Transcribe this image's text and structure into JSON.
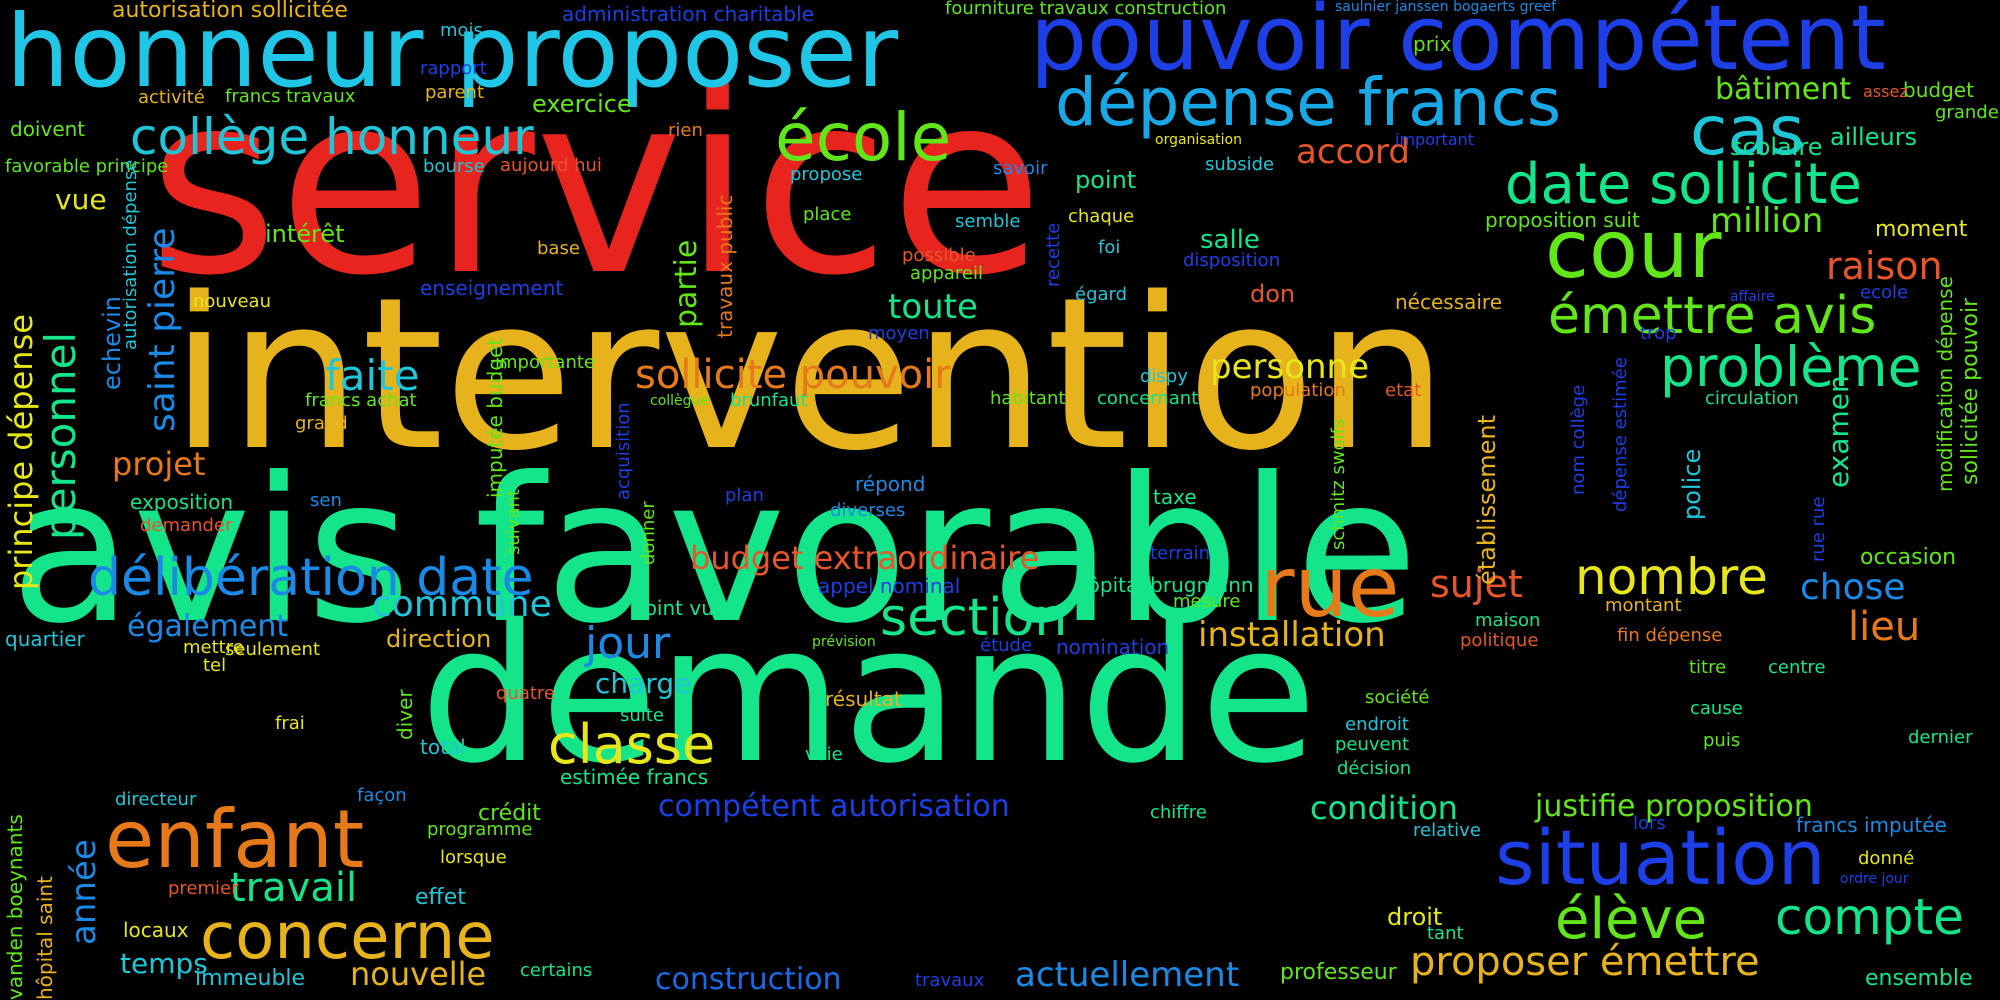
{
  "background": "#000000",
  "words": [
    {
      "id": "service",
      "text": "service",
      "color": "#e8241f"
    },
    {
      "id": "intervention",
      "text": "intervention",
      "color": "#e6b31d"
    },
    {
      "id": "avis-favorable",
      "text": "avis favorable",
      "color": "#14e48a"
    },
    {
      "id": "demande",
      "text": "demande",
      "color": "#14e48a"
    },
    {
      "id": "honneur-proposer",
      "text": "honneur proposer",
      "color": "#20c6e6"
    },
    {
      "id": "pouvoir-competent",
      "text": "pouvoir compétent",
      "color": "#1e3ee6"
    },
    {
      "id": "depense-francs",
      "text": "dépense francs",
      "color": "#1aa7e6"
    },
    {
      "id": "ecole",
      "text": "école",
      "color": "#62e61a"
    },
    {
      "id": "college-honneur",
      "text": "collège honneur",
      "color": "#20c6d8"
    },
    {
      "id": "cas",
      "text": "cas",
      "color": "#20c6d8"
    },
    {
      "id": "cour",
      "text": "cour",
      "color": "#62e61a"
    },
    {
      "id": "date-sollicite",
      "text": "date sollicite",
      "color": "#14e48a"
    },
    {
      "id": "emettre-avis",
      "text": "émettre avis",
      "color": "#62e61a"
    },
    {
      "id": "probleme",
      "text": "problème",
      "color": "#14e48a"
    },
    {
      "id": "raison",
      "text": "raison",
      "color": "#e8552a"
    },
    {
      "id": "million",
      "text": "million",
      "color": "#62e61a"
    },
    {
      "id": "rue",
      "text": "rue",
      "color": "#e67a1a"
    },
    {
      "id": "enfant",
      "text": "enfant",
      "color": "#e67a1a"
    },
    {
      "id": "situation",
      "text": "situation",
      "color": "#1e3ee6"
    },
    {
      "id": "eleve",
      "text": "élève",
      "color": "#62e61a"
    },
    {
      "id": "compte",
      "text": "compte",
      "color": "#14e48a"
    },
    {
      "id": "concerne",
      "text": "concerne",
      "color": "#e6b31d"
    },
    {
      "id": "travail",
      "text": "travail",
      "color": "#14e48a"
    },
    {
      "id": "classe",
      "text": "classe",
      "color": "#e6e61a"
    },
    {
      "id": "section",
      "text": "section",
      "color": "#14e48a"
    },
    {
      "id": "nombre",
      "text": "nombre",
      "color": "#e6e61a"
    },
    {
      "id": "deliberation-date",
      "text": "délibération date",
      "color": "#1a8ae6"
    },
    {
      "id": "budget-extraordinaire",
      "text": "budget extraordinaire",
      "color": "#e8552a"
    },
    {
      "id": "sollicite-pouvoir",
      "text": "sollicite pouvoir",
      "color": "#e67a1a"
    },
    {
      "id": "faite",
      "text": "faite",
      "color": "#20c6d8"
    },
    {
      "id": "toute",
      "text": "toute",
      "color": "#14e48a"
    },
    {
      "id": "personne",
      "text": "personne",
      "color": "#e6e61a"
    },
    {
      "id": "accord",
      "text": "accord",
      "color": "#e8552a"
    },
    {
      "id": "batiment",
      "text": "bâtiment",
      "color": "#62e61a"
    },
    {
      "id": "scolaire",
      "text": "scolaire",
      "color": "#14e48a"
    },
    {
      "id": "proposer-emettre",
      "text": "proposer émettre",
      "color": "#e6b31d"
    },
    {
      "id": "actuellement",
      "text": "actuellement",
      "color": "#1a8ae6"
    },
    {
      "id": "construction",
      "text": "construction",
      "color": "#1a6ae6"
    },
    {
      "id": "nouvelle",
      "text": "nouvelle",
      "color": "#e6b31d"
    },
    {
      "id": "temps",
      "text": "temps",
      "color": "#20c6d8"
    },
    {
      "id": "commune",
      "text": "commune",
      "color": "#20c6d8"
    },
    {
      "id": "jour",
      "text": "jour",
      "color": "#1a8ae6"
    },
    {
      "id": "installation",
      "text": "installation",
      "color": "#e6b31d"
    },
    {
      "id": "sujet",
      "text": "sujet",
      "color": "#e8552a"
    },
    {
      "id": "chose",
      "text": "chose",
      "color": "#1a8ae6"
    },
    {
      "id": "lieu",
      "text": "lieu",
      "color": "#e67a1a"
    },
    {
      "id": "condition",
      "text": "condition",
      "color": "#14e48a"
    },
    {
      "id": "justifie-proposition",
      "text": "justifie proposition",
      "color": "#62e61a"
    },
    {
      "id": "competent-autorisation",
      "text": "compétent autorisation",
      "color": "#1e3ee6"
    },
    {
      "id": "projet",
      "text": "projet",
      "color": "#e67a1a"
    },
    {
      "id": "egalement",
      "text": "également",
      "color": "#1a8ae6"
    },
    {
      "id": "charge",
      "text": "charge",
      "color": "#20c6d8"
    },
    {
      "id": "direction",
      "text": "direction",
      "color": "#e6b31d"
    },
    {
      "id": "vue",
      "text": "vue",
      "color": "#e6e61a"
    },
    {
      "id": "interet",
      "text": "intérêt",
      "color": "#62e61a"
    },
    {
      "id": "point",
      "text": "point",
      "color": "#14e48a"
    },
    {
      "id": "salle",
      "text": "salle",
      "color": "#14e48a"
    },
    {
      "id": "moment",
      "text": "moment",
      "color": "#e6e61a"
    },
    {
      "id": "occasion",
      "text": "occasion",
      "color": "#62e61a"
    },
    {
      "id": "exercice",
      "text": "exercice",
      "color": "#62e61a"
    },
    {
      "id": "prix",
      "text": "prix",
      "color": "#62e61a"
    },
    {
      "id": "budget",
      "text": "budget",
      "color": "#62e61a"
    },
    {
      "id": "grande",
      "text": "grande",
      "color": "#62e61a"
    },
    {
      "id": "ailleurs",
      "text": "ailleurs",
      "color": "#14e48a"
    },
    {
      "id": "autorisation-sollicitee",
      "text": "autorisation sollicitée",
      "color": "#e6b31d"
    },
    {
      "id": "administration-charitable",
      "text": "administration charitable",
      "color": "#1e3ee6"
    },
    {
      "id": "fourniture-travaux-construction",
      "text": "fourniture travaux construction",
      "color": "#62e61a"
    },
    {
      "id": "saulnier-janssen",
      "text": "saulnier janssen bogaerts greef",
      "color": "#1a8ae6"
    },
    {
      "id": "activite",
      "text": "activité",
      "color": "#e6b31d"
    },
    {
      "id": "francs-travaux",
      "text": "francs travaux",
      "color": "#62e61a"
    },
    {
      "id": "parent",
      "text": "parent",
      "color": "#e6b31d"
    },
    {
      "id": "doivent",
      "text": "doivent",
      "color": "#62e61a"
    },
    {
      "id": "favorable-principe",
      "text": "favorable principe",
      "color": "#62e61a"
    },
    {
      "id": "mois",
      "text": "mois",
      "color": "#20c6d8"
    },
    {
      "id": "rapport",
      "text": "rapport",
      "color": "#1e3ee6"
    },
    {
      "id": "bourse",
      "text": "bourse",
      "color": "#20c6d8"
    },
    {
      "id": "rien",
      "text": "rien",
      "color": "#e67a1a"
    },
    {
      "id": "aujourd-hui",
      "text": "aujourd hui",
      "color": "#e8552a"
    },
    {
      "id": "propose",
      "text": "propose",
      "color": "#20c6d8"
    },
    {
      "id": "savoir",
      "text": "savoir",
      "color": "#1a8ae6"
    },
    {
      "id": "organisation",
      "text": "organisation",
      "color": "#e6e61a"
    },
    {
      "id": "subside",
      "text": "subside",
      "color": "#20c6d8"
    },
    {
      "id": "important",
      "text": "important",
      "color": "#1e3ee6"
    },
    {
      "id": "assez",
      "text": "assez",
      "color": "#e8552a"
    },
    {
      "id": "proposition-suit",
      "text": "proposition suit",
      "color": "#62e61a"
    },
    {
      "id": "place",
      "text": "place",
      "color": "#62e61a"
    },
    {
      "id": "semble",
      "text": "semble",
      "color": "#20c6d8"
    },
    {
      "id": "chaque",
      "text": "chaque",
      "color": "#e6e61a"
    },
    {
      "id": "foi",
      "text": "foi",
      "color": "#20c6d8"
    },
    {
      "id": "possible",
      "text": "possible",
      "color": "#e8552a"
    },
    {
      "id": "disposition",
      "text": "disposition",
      "color": "#1e3ee6"
    },
    {
      "id": "appareil",
      "text": "appareil",
      "color": "#62e61a"
    },
    {
      "id": "egard",
      "text": "égard",
      "color": "#20c6d8"
    },
    {
      "id": "don",
      "text": "don",
      "color": "#e8552a"
    },
    {
      "id": "necessaire",
      "text": "nécessaire",
      "color": "#e6b31d"
    },
    {
      "id": "affaire",
      "text": "affaire",
      "color": "#1e3ee6"
    },
    {
      "id": "ecole-small",
      "text": "ecole",
      "color": "#1e3ee6"
    },
    {
      "id": "enseignement",
      "text": "enseignement",
      "color": "#1e3ee6"
    },
    {
      "id": "base",
      "text": "base",
      "color": "#e6b31d"
    },
    {
      "id": "nouveau",
      "text": "nouveau",
      "color": "#e6e61a"
    },
    {
      "id": "moyen",
      "text": "moyen",
      "color": "#1e3ee6"
    },
    {
      "id": "trop",
      "text": "trop",
      "color": "#1e3ee6"
    },
    {
      "id": "importante",
      "text": "importante",
      "color": "#62e61a"
    },
    {
      "id": "grand",
      "text": "grand",
      "color": "#e6b31d"
    },
    {
      "id": "francs-achat",
      "text": "francs achat",
      "color": "#62e61a"
    },
    {
      "id": "collegue",
      "text": "collègue",
      "color": "#62e61a"
    },
    {
      "id": "brunfaut",
      "text": "brunfaut",
      "color": "#14e48a"
    },
    {
      "id": "habitant",
      "text": "habitant",
      "color": "#62e61a"
    },
    {
      "id": "concernant",
      "text": "concernant",
      "color": "#14e48a"
    },
    {
      "id": "dispy",
      "text": "dispy",
      "color": "#20c6d8"
    },
    {
      "id": "population",
      "text": "population",
      "color": "#e67a1a"
    },
    {
      "id": "etat",
      "text": "etat",
      "color": "#e8552a"
    },
    {
      "id": "circulation",
      "text": "circulation",
      "color": "#14e48a"
    },
    {
      "id": "exposition",
      "text": "exposition",
      "color": "#14e48a"
    },
    {
      "id": "demander",
      "text": "demander",
      "color": "#e8552a"
    },
    {
      "id": "sen",
      "text": "sen",
      "color": "#1a8ae6"
    },
    {
      "id": "plan",
      "text": "plan",
      "color": "#1e3ee6"
    },
    {
      "id": "repond",
      "text": "répond",
      "color": "#1a8ae6"
    },
    {
      "id": "diverses",
      "text": "diverses",
      "color": "#1a8ae6"
    },
    {
      "id": "taxe",
      "text": "taxe",
      "color": "#14e48a"
    },
    {
      "id": "terrain",
      "text": "terrain",
      "color": "#1e3ee6"
    },
    {
      "id": "appel-nominal",
      "text": "appel nominal",
      "color": "#1e3ee6"
    },
    {
      "id": "hopital-brugmann",
      "text": "hôpital brugmann",
      "color": "#14e48a"
    },
    {
      "id": "mesure",
      "text": "mesure",
      "color": "#62e61a"
    },
    {
      "id": "maison",
      "text": "maison",
      "color": "#14e48a"
    },
    {
      "id": "montant",
      "text": "montant",
      "color": "#e6b31d"
    },
    {
      "id": "fin-depense",
      "text": "fin dépense",
      "color": "#e67a1a"
    },
    {
      "id": "politique",
      "text": "politique",
      "color": "#e8552a"
    },
    {
      "id": "quartier",
      "text": "quartier",
      "color": "#20c6d8"
    },
    {
      "id": "mettre",
      "text": "mettre",
      "color": "#e6e61a"
    },
    {
      "id": "seulement",
      "text": "seulement",
      "color": "#e6e61a"
    },
    {
      "id": "tel",
      "text": "tel",
      "color": "#e6e61a"
    },
    {
      "id": "point-vue",
      "text": "point vue",
      "color": "#14e48a"
    },
    {
      "id": "prevision",
      "text": "prévision",
      "color": "#62e61a"
    },
    {
      "id": "etude",
      "text": "étude",
      "color": "#1e3ee6"
    },
    {
      "id": "nomination",
      "text": "nomination",
      "color": "#1e3ee6"
    },
    {
      "id": "titre",
      "text": "titre",
      "color": "#62e61a"
    },
    {
      "id": "centre",
      "text": "centre",
      "color": "#14e48a"
    },
    {
      "id": "quatre",
      "text": "quatre",
      "color": "#e8552a"
    },
    {
      "id": "resultat",
      "text": "résultat",
      "color": "#e6b31d"
    },
    {
      "id": "suite",
      "text": "suite",
      "color": "#14e48a"
    },
    {
      "id": "frai",
      "text": "frai",
      "color": "#e6e61a"
    },
    {
      "id": "total",
      "text": "total",
      "color": "#20c6d8"
    },
    {
      "id": "estimee-francs",
      "text": "estimée francs",
      "color": "#14e48a"
    },
    {
      "id": "voie",
      "text": "voie",
      "color": "#14e48a"
    },
    {
      "id": "societe",
      "text": "société",
      "color": "#62e61a"
    },
    {
      "id": "endroit",
      "text": "endroit",
      "color": "#20c6d8"
    },
    {
      "id": "peuvent",
      "text": "peuvent",
      "color": "#14e48a"
    },
    {
      "id": "decision",
      "text": "décision",
      "color": "#14e48a"
    },
    {
      "id": "cause",
      "text": "cause",
      "color": "#14e48a"
    },
    {
      "id": "puis",
      "text": "puis",
      "color": "#62e61a"
    },
    {
      "id": "dernier",
      "text": "dernier",
      "color": "#14e48a"
    },
    {
      "id": "directeur",
      "text": "directeur",
      "color": "#20c6d8"
    },
    {
      "id": "facon",
      "text": "façon",
      "color": "#1a8ae6"
    },
    {
      "id": "credit",
      "text": "crédit",
      "color": "#62e61a"
    },
    {
      "id": "chiffre",
      "text": "chiffre",
      "color": "#14e48a"
    },
    {
      "id": "programme",
      "text": "programme",
      "color": "#62e61a"
    },
    {
      "id": "lorsque",
      "text": "lorsque",
      "color": "#e6e61a"
    },
    {
      "id": "premier",
      "text": "premier",
      "color": "#e8552a"
    },
    {
      "id": "effet",
      "text": "effet",
      "color": "#20c6d8"
    },
    {
      "id": "locaux",
      "text": "locaux",
      "color": "#e6e61a"
    },
    {
      "id": "relative",
      "text": "relative",
      "color": "#20c6d8"
    },
    {
      "id": "lors",
      "text": "lors",
      "color": "#1e3ee6"
    },
    {
      "id": "francs-imputee",
      "text": "francs imputée",
      "color": "#1a8ae6"
    },
    {
      "id": "donne",
      "text": "donné",
      "color": "#e6e61a"
    },
    {
      "id": "ordre-jour",
      "text": "ordre jour",
      "color": "#1e3ee6"
    },
    {
      "id": "droit",
      "text": "droit",
      "color": "#e6e61a"
    },
    {
      "id": "tant",
      "text": "tant",
      "color": "#14e48a"
    },
    {
      "id": "immeuble",
      "text": "immeuble",
      "color": "#20c6d8"
    },
    {
      "id": "certains",
      "text": "certains",
      "color": "#14e48a"
    },
    {
      "id": "travaux",
      "text": "travaux",
      "color": "#1e3ee6"
    },
    {
      "id": "professeur",
      "text": "professeur",
      "color": "#62e61a"
    },
    {
      "id": "ensemble",
      "text": "ensemble",
      "color": "#14e48a"
    },
    {
      "id": "personnel",
      "text": "personnel",
      "color": "#14e48a"
    },
    {
      "id": "saint-pierre",
      "text": "saint pierre",
      "color": "#1a8ae6"
    },
    {
      "id": "principe-depense",
      "text": "principe dépense",
      "color": "#e6e61a"
    },
    {
      "id": "echevin",
      "text": "echevin",
      "color": "#1a8ae6"
    },
    {
      "id": "autorisation-depense",
      "text": "autorisation dépense",
      "color": "#20c6d8"
    },
    {
      "id": "partie",
      "text": "partie",
      "color": "#62e61a"
    },
    {
      "id": "travaux-public",
      "text": "travaux public",
      "color": "#e67a1a"
    },
    {
      "id": "recette",
      "text": "recette",
      "color": "#1e3ee6"
    },
    {
      "id": "etablissement",
      "text": "établissement",
      "color": "#e6b31d"
    },
    {
      "id": "examen",
      "text": "examen",
      "color": "#14e48a"
    },
    {
      "id": "modification-depense",
      "text": "modification dépense",
      "color": "#62e61a"
    },
    {
      "id": "sollicitee-pouvoir",
      "text": "sollicitée pouvoir",
      "color": "#62e61a"
    },
    {
      "id": "imputee-budget",
      "text": "imputée budget",
      "color": "#62e61a"
    },
    {
      "id": "acquisition",
      "text": "acquisition",
      "color": "#1e3ee6"
    },
    {
      "id": "suivant",
      "text": "suivant",
      "color": "#62e61a"
    },
    {
      "id": "donner",
      "text": "donner",
      "color": "#62e61a"
    },
    {
      "id": "diver",
      "text": "diver",
      "color": "#62e61a"
    },
    {
      "id": "schmitz-swolfs",
      "text": "schmitz swolfs",
      "color": "#62e61a"
    },
    {
      "id": "police",
      "text": "police",
      "color": "#20c6d8"
    },
    {
      "id": "nom-college",
      "text": "nom collège",
      "color": "#1e3ee6"
    },
    {
      "id": "depense-estimee",
      "text": "dépense estimée",
      "color": "#1e3ee6"
    },
    {
      "id": "rue-rue",
      "text": "rue rue",
      "color": "#1e3ee6"
    },
    {
      "id": "annee",
      "text": "année",
      "color": "#1a8ae6"
    },
    {
      "id": "vanden-boeynants",
      "text": "vanden boeynants",
      "color": "#62e61a"
    },
    {
      "id": "hopital-saint",
      "text": "hôpital saint",
      "color": "#e6b31d"
    }
  ]
}
